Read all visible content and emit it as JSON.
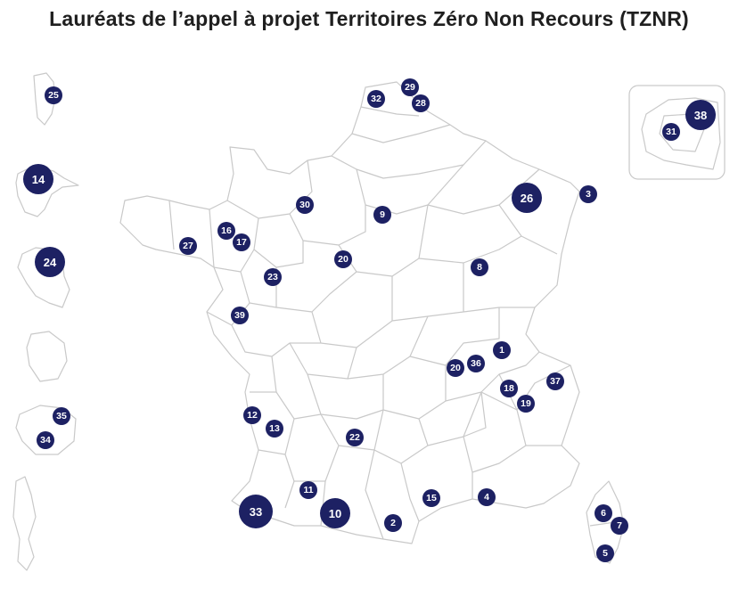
{
  "title": "Lauréats de l’appel à projet Territoires Zéro Non Recours (TZNR)",
  "colors": {
    "marker": "#1d2163",
    "outline": "#c9c9c9"
  },
  "markers": [
    {
      "label": "1"
    },
    {
      "label": "2"
    },
    {
      "label": "3"
    },
    {
      "label": "4"
    },
    {
      "label": "5"
    },
    {
      "label": "6"
    },
    {
      "label": "7"
    },
    {
      "label": "8"
    },
    {
      "label": "9"
    },
    {
      "label": "10"
    },
    {
      "label": "11"
    },
    {
      "label": "12"
    },
    {
      "label": "13"
    },
    {
      "label": "14"
    },
    {
      "label": "15"
    },
    {
      "label": "16"
    },
    {
      "label": "17"
    },
    {
      "label": "18"
    },
    {
      "label": "19"
    },
    {
      "label": "20"
    },
    {
      "label": "20"
    },
    {
      "label": "22"
    },
    {
      "label": "23"
    },
    {
      "label": "24"
    },
    {
      "label": "25"
    },
    {
      "label": "26"
    },
    {
      "label": "27"
    },
    {
      "label": "28"
    },
    {
      "label": "29"
    },
    {
      "label": "30"
    },
    {
      "label": "31"
    },
    {
      "label": "32"
    },
    {
      "label": "33"
    },
    {
      "label": "34"
    },
    {
      "label": "35"
    },
    {
      "label": "36"
    },
    {
      "label": "37"
    },
    {
      "label": "38"
    },
    {
      "label": "39"
    }
  ]
}
